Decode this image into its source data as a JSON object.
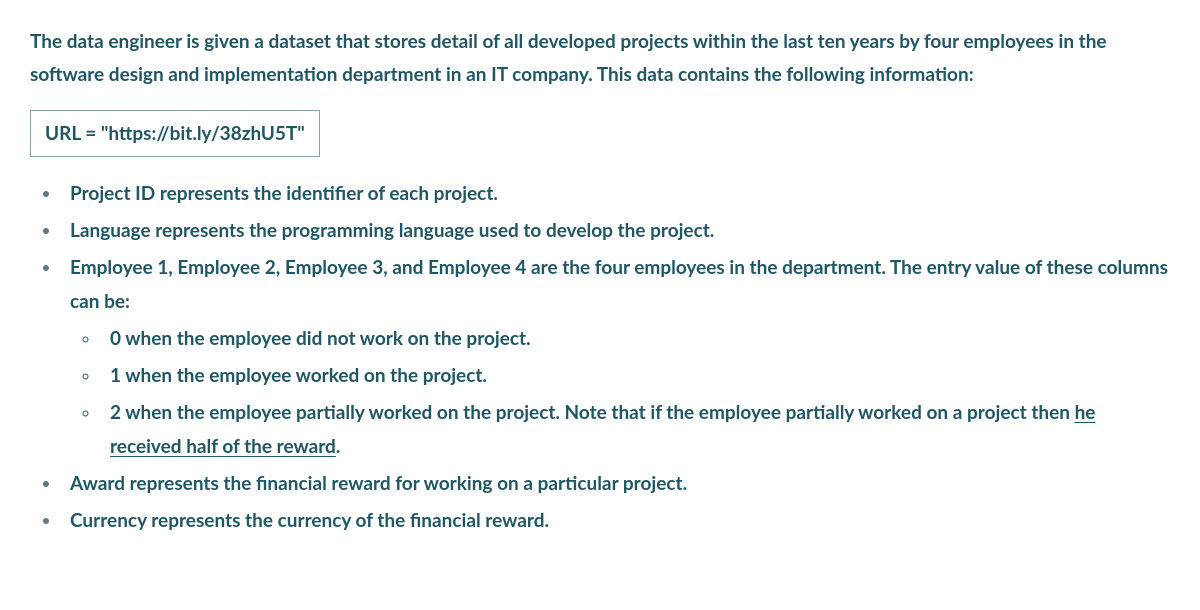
{
  "intro": "The data engineer is given a dataset that stores detail of all developed projects within the last ten years by four employees in the software design and implementation department in an IT company. This data contains the following information:",
  "url_line": "URL = \"https://bit.ly/38zhU5T\"",
  "bullets": {
    "project_id": "Project ID represents the identifier of each project.",
    "language": "Language represents the programming language used to develop the project.",
    "employees_lead": "Employee 1, Employee 2, Employee 3, and Employee 4 are the four employees in the department. The entry value of these columns can be:",
    "sub0": "0 when the employee did not work on the project.",
    "sub1": "1 when the employee worked on the project.",
    "sub2_pre": "2 when the employee partially worked on the project. Note that if the employee partially worked on a project then ",
    "sub2_underlined": "he received half of the reward",
    "sub2_post": ".",
    "award": "Award represents the financial reward for working on a particular project.",
    "currency": "Currency represents the currency of the financial reward."
  }
}
